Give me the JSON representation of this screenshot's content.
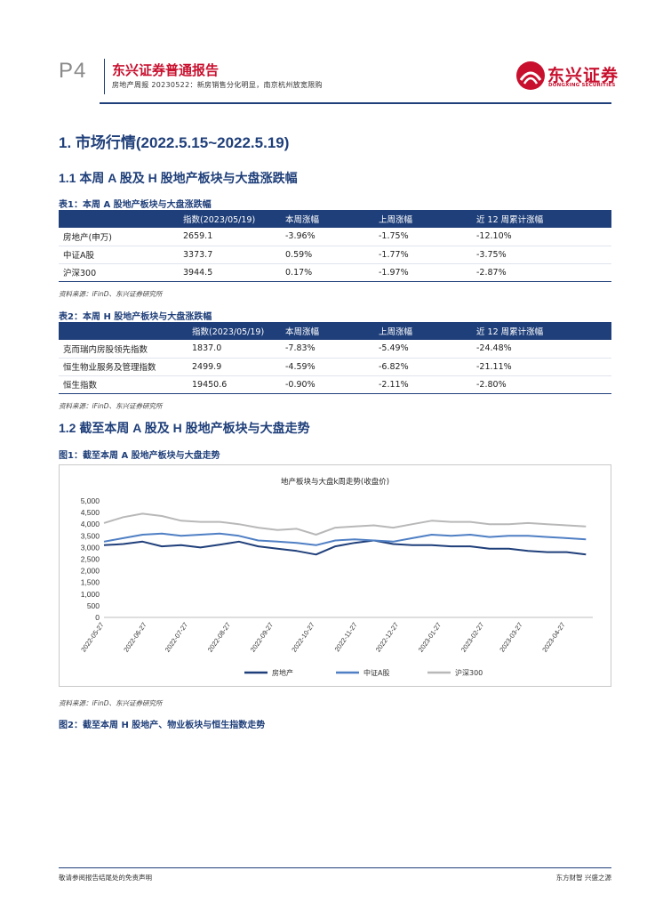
{
  "header": {
    "page_number": "P4",
    "report_title": "东兴证券普通报告",
    "report_subtitle": "房地产周报 20230522：新房销售分化明显，南京杭州放宽限购",
    "logo_cn": "东兴证券",
    "logo_en": "DONGXING SECURITIES"
  },
  "section1": {
    "title": "1. 市场行情(2022.5.15~2022.5.19)"
  },
  "section1_1": {
    "title": "1.1 本周 A 股及 H 股地产板块与大盘涨跌幅"
  },
  "table1": {
    "caption": "表1：本周 A 股地产板块与大盘涨跌幅",
    "headers": [
      "",
      "指数(2023/05/19)",
      "本周涨幅",
      "上周涨幅",
      "近 12 周累计涨幅"
    ],
    "rows": [
      [
        "房地产(申万)",
        "2659.1",
        "-3.96%",
        "-1.75%",
        "-12.10%"
      ],
      [
        "中证A股",
        "3373.7",
        "0.59%",
        "-1.77%",
        "-3.75%"
      ],
      [
        "沪深300",
        "3944.5",
        "0.17%",
        "-1.97%",
        "-2.87%"
      ]
    ],
    "source": "资料来源：iFinD、东兴证券研究所"
  },
  "table2": {
    "caption": "表2：本周 H 股地产板块与大盘涨跌幅",
    "headers": [
      "",
      "指数(2023/05/19)",
      "本周涨幅",
      "上周涨幅",
      "近 12 周累计涨幅"
    ],
    "rows": [
      [
        "克而瑞内房股领先指数",
        "1837.0",
        "-7.83%",
        "-5.49%",
        "-24.48%"
      ],
      [
        "恒生物业服务及管理指数",
        "2499.9",
        "-4.59%",
        "-6.82%",
        "-21.11%"
      ],
      [
        "恒生指数",
        "19450.6",
        "-0.90%",
        "-2.11%",
        "-2.80%"
      ]
    ],
    "source": "资料来源：iFinD、东兴证券研究所"
  },
  "section1_2": {
    "title": "1.2 截至本周 A 股及 H 股地产板块与大盘走势"
  },
  "figure1": {
    "caption": "图1：截至本周 A 股地产板块与大盘走势",
    "source": "资料来源：iFinD、东兴证券研究所"
  },
  "figure2": {
    "caption": "图2：截至本周 H 股地产、物业板块与恒生指数走势"
  },
  "chart_data": {
    "type": "line",
    "title": "地产板块与大盘k周走势(收盘价)",
    "x": [
      "2022-05-27",
      "2022-06-10",
      "2022-06-24",
      "2022-07-08",
      "2022-07-22",
      "2022-08-05",
      "2022-08-19",
      "2022-09-02",
      "2022-09-16",
      "2022-09-30",
      "2022-10-14",
      "2022-10-28",
      "2022-11-11",
      "2022-11-25",
      "2022-12-09",
      "2022-12-23",
      "2023-01-06",
      "2023-01-20",
      "2023-02-03",
      "2023-02-17",
      "2023-03-03",
      "2023-03-17",
      "2023-03-31",
      "2023-04-14",
      "2023-04-28",
      "2023-05-12"
    ],
    "x_ticks": [
      "2022-05-27",
      "2022-06-27",
      "2022-07-27",
      "2022-08-27",
      "2022-09-27",
      "2022-10-27",
      "2022-11-27",
      "2022-12-27",
      "2023-01-27",
      "2023-02-27",
      "2023-03-27",
      "2023-04-27"
    ],
    "ylim": [
      0,
      5000
    ],
    "y_ticks": [
      "0",
      "500",
      "1,000",
      "1,500",
      "2,000",
      "2,500",
      "3,000",
      "3,500",
      "4,000",
      "4,500",
      "5,000"
    ],
    "grid": false,
    "legend_position": "bottom",
    "series": [
      {
        "name": "房地产",
        "color": "#1f3f7a",
        "values": [
          3100,
          3150,
          3250,
          3050,
          3100,
          3000,
          3120,
          3250,
          3050,
          2950,
          2850,
          2700,
          3050,
          3200,
          3300,
          3150,
          3100,
          3100,
          3050,
          3050,
          2950,
          2950,
          2850,
          2800,
          2800,
          2700
        ]
      },
      {
        "name": "中证A股",
        "color": "#4f7fc4",
        "values": [
          3250,
          3400,
          3550,
          3600,
          3500,
          3550,
          3600,
          3500,
          3300,
          3250,
          3200,
          3100,
          3300,
          3350,
          3300,
          3250,
          3400,
          3550,
          3500,
          3550,
          3450,
          3500,
          3500,
          3450,
          3400,
          3350
        ]
      },
      {
        "name": "沪深300",
        "color": "#b8b8b8",
        "values": [
          4050,
          4300,
          4450,
          4350,
          4150,
          4100,
          4100,
          4000,
          3850,
          3750,
          3800,
          3550,
          3850,
          3900,
          3950,
          3850,
          4000,
          4150,
          4100,
          4100,
          4000,
          4000,
          4050,
          4000,
          3950,
          3900
        ]
      }
    ]
  },
  "footer": {
    "left": "敬请参阅报告结尾处的免责声明",
    "right": "东方财智 兴盛之源"
  }
}
